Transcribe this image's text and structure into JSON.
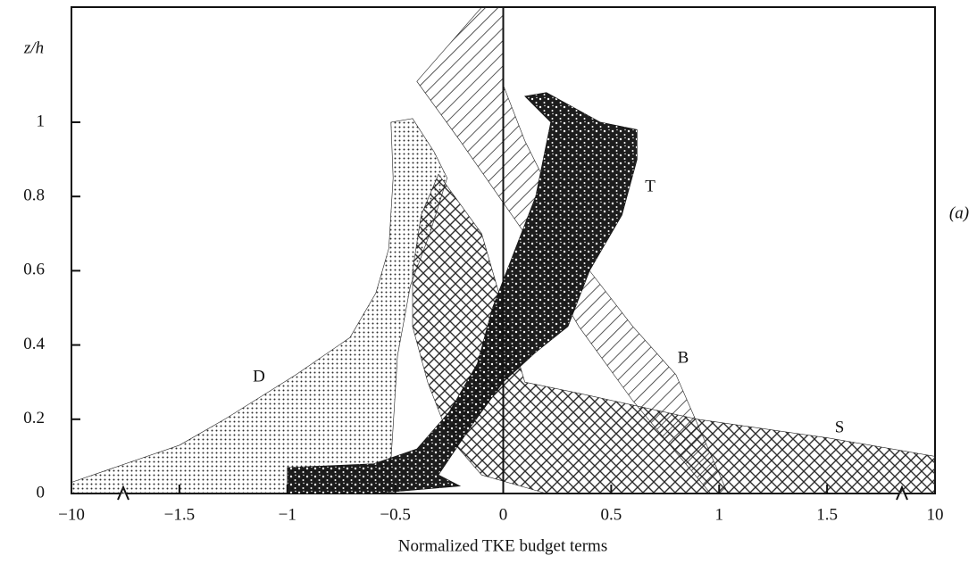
{
  "chart_data": {
    "type": "region",
    "ylabel": "z/h",
    "xlabel": "Normalized TKE budget terms",
    "annotation": "(a)",
    "xlim": [
      -10,
      10
    ],
    "xticks": [
      {
        "value": -10,
        "label": "−10"
      },
      {
        "value": -1.5,
        "label": "−1.5"
      },
      {
        "value": -1,
        "label": "−1"
      },
      {
        "value": -0.5,
        "label": "−0.5"
      },
      0,
      0.5,
      1,
      1.5,
      10
    ],
    "axis_break": true,
    "ylim": [
      0,
      1.31
    ],
    "yticks": [
      0,
      0.2,
      0.4,
      0.6,
      0.8,
      1
    ],
    "series": [
      {
        "name": "D",
        "pattern": "dots",
        "color": "#222",
        "x": [
          -10,
          -1.5,
          -1.29,
          -0.96,
          -0.71,
          -0.59,
          -0.53,
          -0.51,
          -0.52,
          -0.42,
          -0.32,
          -0.26,
          -0.34,
          -0.43,
          -0.49,
          -0.51,
          -0.53,
          -10
        ],
        "y": [
          0.03,
          0.13,
          0.2,
          0.32,
          0.42,
          0.54,
          0.66,
          0.85,
          1.0,
          1.01,
          0.92,
          0.85,
          0.7,
          0.56,
          0.37,
          0.18,
          0,
          0
        ]
      },
      {
        "name": "S",
        "pattern": "crosshatch",
        "color": "#222",
        "x": [
          -0.3,
          -0.1,
          0,
          0.1,
          0.35,
          0.9,
          1.5,
          10,
          10,
          0.2,
          -0.1,
          -0.25,
          -0.35,
          -0.42,
          -0.42,
          -0.38
        ],
        "y": [
          0.86,
          0.7,
          0.5,
          0.3,
          0.27,
          0.2,
          0.15,
          0.1,
          0,
          0,
          0.05,
          0.15,
          0.3,
          0.45,
          0.6,
          0.75
        ]
      },
      {
        "name": "B",
        "pattern": "diagonal",
        "color": "#222",
        "x": [
          -0.4,
          -0.1,
          0,
          0,
          0.1,
          0.4,
          0.6,
          0.8,
          1.04,
          0.96,
          0.6,
          0.35,
          0.1,
          -0.2
        ],
        "y": [
          1.11,
          1.31,
          1.31,
          1.1,
          0.95,
          0.6,
          0.45,
          0.32,
          0,
          0,
          0.25,
          0.45,
          0.7,
          0.95
        ]
      },
      {
        "name": "T",
        "pattern": "blotch",
        "color": "#111",
        "x": [
          -1,
          -0.6,
          -0.4,
          -0.25,
          -0.12,
          -0.05,
          0.05,
          0.15,
          0.22,
          0.1,
          0.2,
          0.45,
          0.62,
          0.62,
          0.55,
          0.4,
          0.3,
          0.15,
          0,
          -0.15,
          -0.3,
          -0.2,
          -0.6,
          -1
        ],
        "y": [
          0.07,
          0.08,
          0.12,
          0.22,
          0.35,
          0.5,
          0.65,
          0.8,
          1.0,
          1.07,
          1.08,
          1.0,
          0.98,
          0.9,
          0.75,
          0.6,
          0.45,
          0.38,
          0.3,
          0.18,
          0.05,
          0.02,
          0,
          0
        ]
      }
    ]
  }
}
